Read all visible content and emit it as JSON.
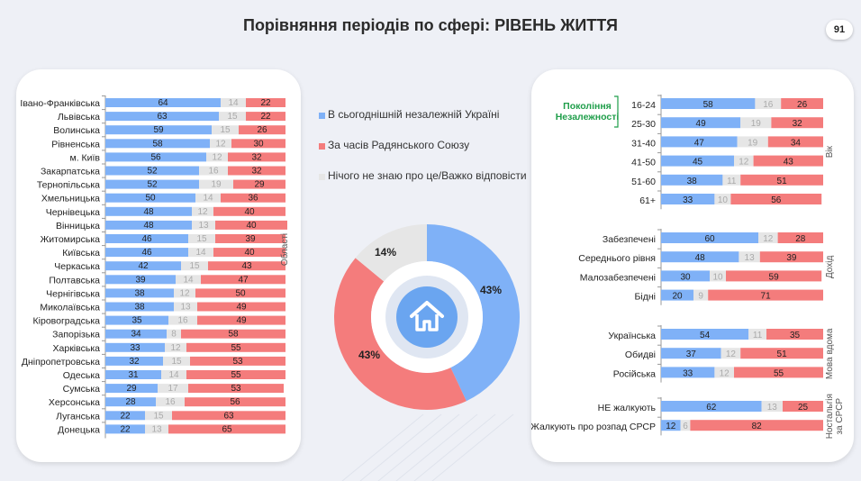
{
  "title": "Порівняння періодів по сфері: РІВЕНЬ ЖИТТЯ",
  "page_number": "91",
  "colors": {
    "blue": "#7fb1f7",
    "red": "#f47c7c",
    "gray": "#e6e6e6",
    "green": "#1f9e4a"
  },
  "legend": [
    {
      "label": "В сьогоднішній незалежній Україні",
      "color": "#7fb1f7"
    },
    {
      "label": "За часів Радянського Союзу",
      "color": "#f47c7c"
    },
    {
      "label": "Нічого не знаю про це/Важко відповісти",
      "color": "#e6e6e6"
    }
  ],
  "chart_data": [
    {
      "type": "bar",
      "orientation": "horizontal-stacked",
      "group_label": "Області",
      "series_order": [
        "В сьогоднішній незалежній Україні",
        "Нічого не знаю про це/Важко відповісти",
        "За часів Радянського Союзу"
      ],
      "categories": [
        "Івано-Франківська",
        "Львівська",
        "Волинська",
        "Рівненська",
        "м. Київ",
        "Закарпатська",
        "Тернопільська",
        "Хмельницька",
        "Чернівецька",
        "Вінницька",
        "Житомирська",
        "Київська",
        "Черкаська",
        "Полтавська",
        "Чернігівська",
        "Миколаївська",
        "Кіровоградська",
        "Запорізька",
        "Харківська",
        "Дніпропетровська",
        "Одеська",
        "Сумська",
        "Херсонська",
        "Луганська",
        "Донецька"
      ],
      "values": [
        [
          64,
          14,
          22
        ],
        [
          63,
          15,
          22
        ],
        [
          59,
          15,
          26
        ],
        [
          58,
          12,
          30
        ],
        [
          56,
          12,
          32
        ],
        [
          52,
          16,
          32
        ],
        [
          52,
          19,
          29
        ],
        [
          50,
          14,
          36
        ],
        [
          48,
          12,
          40
        ],
        [
          48,
          13,
          40
        ],
        [
          46,
          15,
          39
        ],
        [
          46,
          14,
          40
        ],
        [
          42,
          15,
          43
        ],
        [
          39,
          14,
          47
        ],
        [
          38,
          12,
          50
        ],
        [
          38,
          13,
          49
        ],
        [
          35,
          16,
          49
        ],
        [
          34,
          8,
          58
        ],
        [
          33,
          12,
          55
        ],
        [
          32,
          15,
          53
        ],
        [
          31,
          14,
          55
        ],
        [
          29,
          17,
          53
        ],
        [
          28,
          16,
          56
        ],
        [
          22,
          15,
          63
        ],
        [
          22,
          13,
          65
        ]
      ]
    },
    {
      "type": "pie",
      "variant": "donut",
      "slices": [
        {
          "name": "В сьогоднішній незалежній Україні",
          "value": 43,
          "label": "43%"
        },
        {
          "name": "За часів Радянського Союзу",
          "value": 43,
          "label": "43%"
        },
        {
          "name": "Нічого не знаю про це/Важко відповісти",
          "value": 14,
          "label": "14%"
        }
      ],
      "center_icon": "house-icon"
    },
    {
      "type": "bar",
      "orientation": "horizontal-stacked",
      "series_order": [
        "В сьогоднішній незалежній Україні",
        "Нічого не знаю про це/Важко відповісти",
        "За часів Радянського Союзу"
      ],
      "highlight": {
        "label": "Покоління Незалежності",
        "lines": [
          "Покоління",
          "Незалежності"
        ],
        "color": "#1f9e4a"
      },
      "groups": [
        {
          "label": "Вік",
          "categories": [
            "16-24",
            "25-30",
            "31-40",
            "41-50",
            "51-60",
            "61+"
          ],
          "values": [
            [
              58,
              16,
              26
            ],
            [
              49,
              19,
              32
            ],
            [
              47,
              19,
              34
            ],
            [
              45,
              12,
              43
            ],
            [
              38,
              11,
              51
            ],
            [
              33,
              10,
              56
            ]
          ]
        },
        {
          "label": "Дохід",
          "categories": [
            "Забезпечені",
            "Середнього рівня",
            "Малозабезпечені",
            "Бідні"
          ],
          "values": [
            [
              60,
              12,
              28
            ],
            [
              48,
              13,
              39
            ],
            [
              30,
              10,
              59
            ],
            [
              20,
              9,
              71
            ]
          ]
        },
        {
          "label": "Мова вдома",
          "categories": [
            "Українська",
            "Обидві",
            "Російська"
          ],
          "values": [
            [
              54,
              11,
              35
            ],
            [
              37,
              12,
              51
            ],
            [
              33,
              12,
              55
            ]
          ]
        },
        {
          "label": "Ностальгія за СРСР",
          "lines": [
            "Ностальгія",
            "за СРСР"
          ],
          "categories": [
            "НЕ жалкують",
            "Жалкують про розпад СРСР"
          ],
          "values": [
            [
              62,
              13,
              25
            ],
            [
              12,
              6,
              82
            ]
          ]
        }
      ]
    }
  ]
}
